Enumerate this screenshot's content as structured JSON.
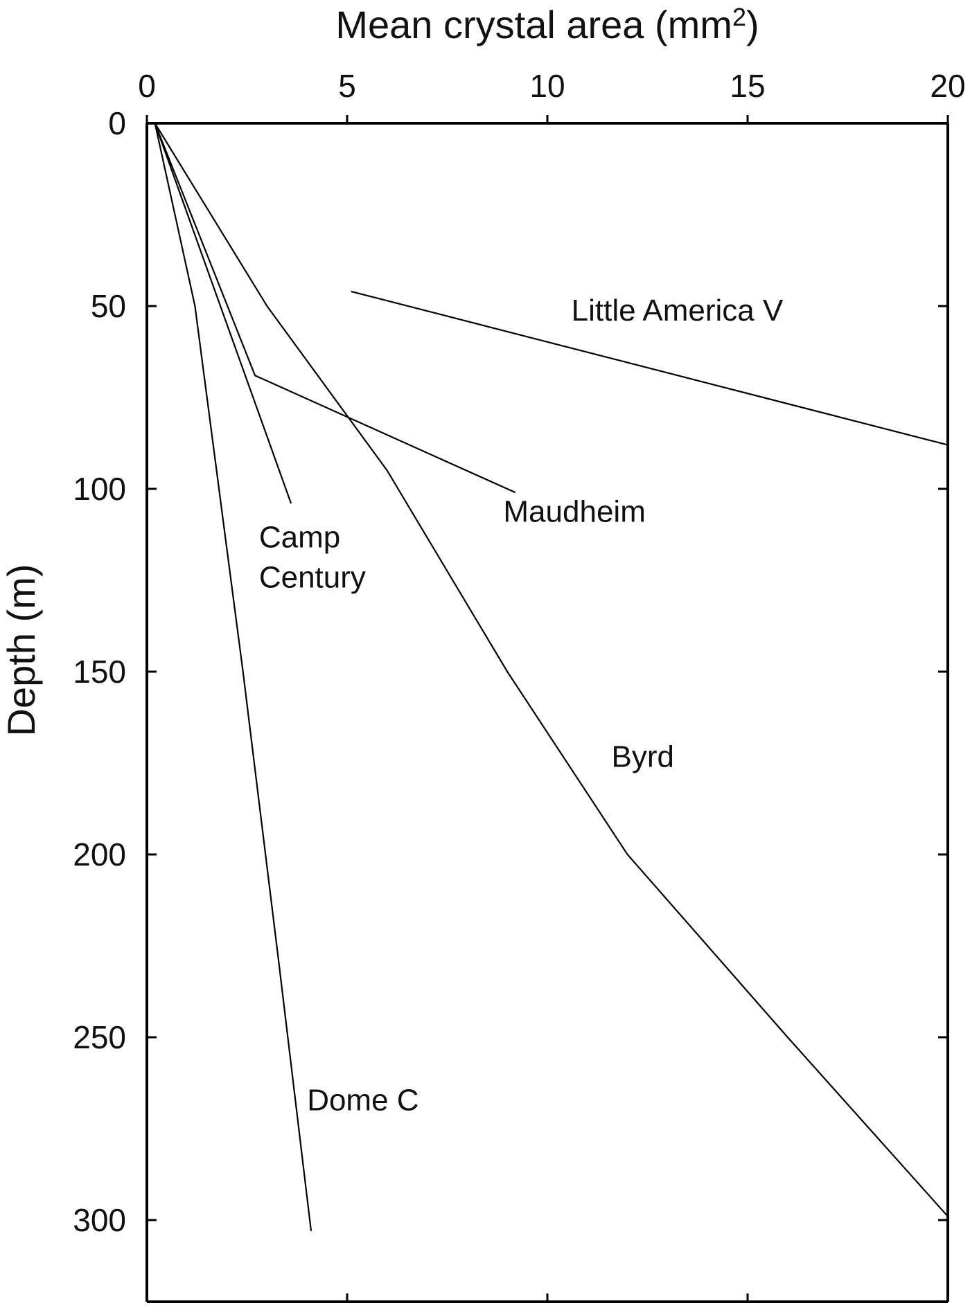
{
  "chart_data": {
    "type": "line",
    "title": "",
    "xlabel": "Mean crystal area (mm²)",
    "xlabel_main": "Mean crystal area (mm",
    "xlabel_sup": "2",
    "xlabel_tail": ")",
    "ylabel": "Depth (m)",
    "xlim": [
      0,
      20
    ],
    "ylim": [
      0,
      320
    ],
    "y_inverted": true,
    "x_axis_position": "top",
    "x_ticks": [
      0,
      5,
      10,
      15,
      20
    ],
    "x_tick_labels": [
      "0",
      "5",
      "10",
      "15",
      "20"
    ],
    "y_ticks": [
      0,
      50,
      100,
      150,
      200,
      250,
      300
    ],
    "y_tick_labels": [
      "0",
      "50",
      "100",
      "150",
      "200",
      "250",
      "300"
    ],
    "grid": false,
    "legend": "none",
    "line_color": "#000000",
    "series": [
      {
        "label_lines": [
          "Little America V"
        ],
        "x": [
          5.1,
          20.0
        ],
        "y": [
          46,
          88
        ]
      },
      {
        "label_lines": [
          "Maudheim"
        ],
        "x": [
          0.2,
          2.7,
          9.2
        ],
        "y": [
          0,
          69,
          101
        ]
      },
      {
        "label_lines": [
          "Camp",
          "Century"
        ],
        "x": [
          0.2,
          3.6
        ],
        "y": [
          0,
          104
        ]
      },
      {
        "label_lines": [
          "Byrd"
        ],
        "x": [
          0.2,
          3.0,
          6.0,
          9.0,
          12.0,
          16.0,
          20.0
        ],
        "y": [
          0,
          50,
          95,
          150,
          200,
          250,
          299
        ]
      },
      {
        "label_lines": [
          "Dome C"
        ],
        "x": [
          0.2,
          1.2,
          2.4,
          3.3,
          4.1
        ],
        "y": [
          0,
          50,
          150,
          230,
          303
        ]
      }
    ],
    "annotations": [
      {
        "text_lines": [
          "Little America V"
        ],
        "x": 10.6,
        "y": 54
      },
      {
        "text_lines": [
          "Maudheim"
        ],
        "x": 8.9,
        "y": 109
      },
      {
        "text_lines": [
          "Camp",
          "Century"
        ],
        "x": 2.8,
        "y": 116
      },
      {
        "text_lines": [
          "Byrd"
        ],
        "x": 11.6,
        "y": 176
      },
      {
        "text_lines": [
          "Dome C"
        ],
        "x": 4.0,
        "y": 270
      }
    ]
  }
}
